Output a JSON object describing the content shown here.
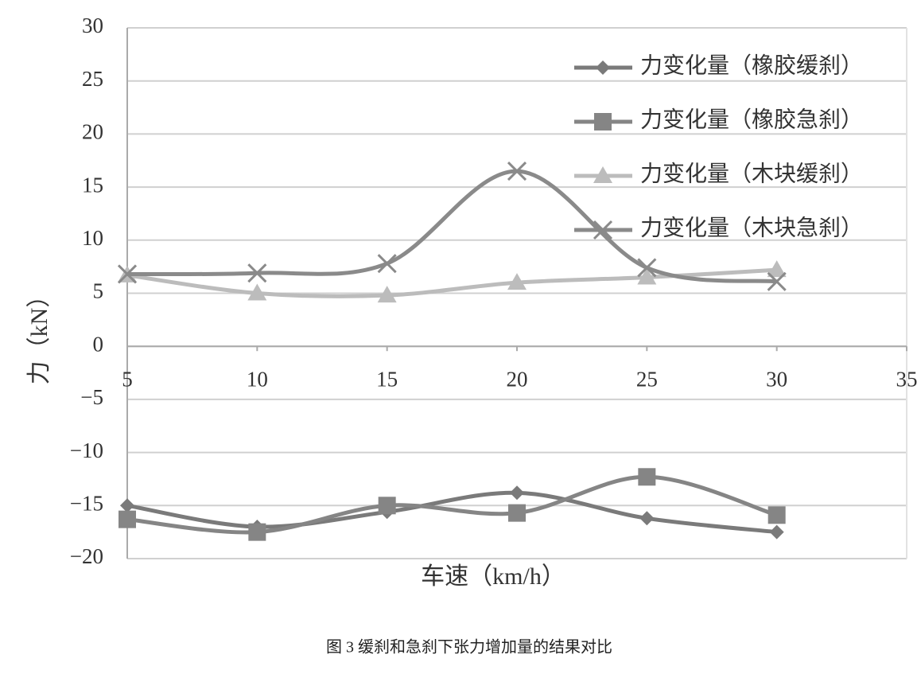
{
  "chart_data": {
    "type": "line",
    "x": [
      5,
      10,
      15,
      20,
      25,
      30
    ],
    "series": [
      {
        "name": "力变化量（橡胶缓刹）",
        "color": "#7a7a7a",
        "marker": "diamond",
        "values": [
          -15,
          -17,
          -15.6,
          -13.8,
          -16.2,
          -17.5
        ]
      },
      {
        "name": "力变化量（橡胶急刹）",
        "color": "#858585",
        "marker": "square",
        "values": [
          -16.3,
          -17.5,
          -15,
          -15.7,
          -12.3,
          -15.9
        ]
      },
      {
        "name": "力变化量（木块缓刹）",
        "color": "#bcbcbc",
        "marker": "triangle",
        "values": [
          6.7,
          5,
          4.8,
          6,
          6.5,
          7.2
        ]
      },
      {
        "name": "力变化量（木块急刹）",
        "color": "#8a8a8a",
        "marker": "x",
        "values": [
          6.8,
          6.9,
          7.8,
          16.5,
          7.4,
          6.1
        ]
      }
    ],
    "xlim": [
      5,
      35
    ],
    "xticks": [
      5,
      10,
      15,
      20,
      25,
      30,
      35
    ],
    "ylim": [
      -20,
      30
    ],
    "yticks": [
      {
        "value": -20,
        "label": "−20"
      },
      {
        "value": -15,
        "label": "−15"
      },
      {
        "value": -10,
        "label": "−10"
      },
      {
        "value": -5,
        "label": "−5"
      },
      0,
      5,
      10,
      15,
      20,
      25,
      30
    ],
    "grid": true,
    "xlabel": "车速（km/h）",
    "ylabel": "力（kN）",
    "caption": "图 3 缓刹和急刹下张力增加量的结果对比",
    "legend": "upper-right"
  }
}
